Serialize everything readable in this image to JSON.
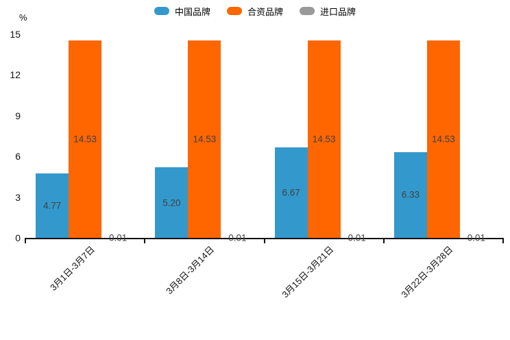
{
  "chart_data": {
    "type": "bar",
    "title": "",
    "categories": [
      "3月1日-3月7日",
      "3月8日-3月14日",
      "3月15日-3月21日",
      "3月22日-3月28日"
    ],
    "series": [
      {
        "name": "中国品牌",
        "color": "#3399CC",
        "values": [
          4.77,
          5.2,
          6.67,
          6.33
        ]
      },
      {
        "name": "合资品牌",
        "color": "#FF6600",
        "values": [
          14.53,
          14.53,
          14.53,
          14.53
        ]
      },
      {
        "name": "进口品牌",
        "color": "#999999",
        "values": [
          0.01,
          0.01,
          0.01,
          0.01
        ]
      }
    ],
    "value_labels": [
      [
        "4.77",
        "5.20",
        "6.67",
        "6.33"
      ],
      [
        "14.53",
        "14.53",
        "14.53",
        "14.53"
      ],
      [
        "0.01",
        "0.01",
        "0.01",
        "0.01"
      ]
    ],
    "ylabel": "%",
    "ylim": [
      0,
      15
    ],
    "yticks": [
      "0",
      "3",
      "6",
      "9",
      "12",
      "15"
    ],
    "legend_position": "top",
    "grid": false,
    "axis_color": "#111111",
    "value_label_color": "#404040"
  }
}
